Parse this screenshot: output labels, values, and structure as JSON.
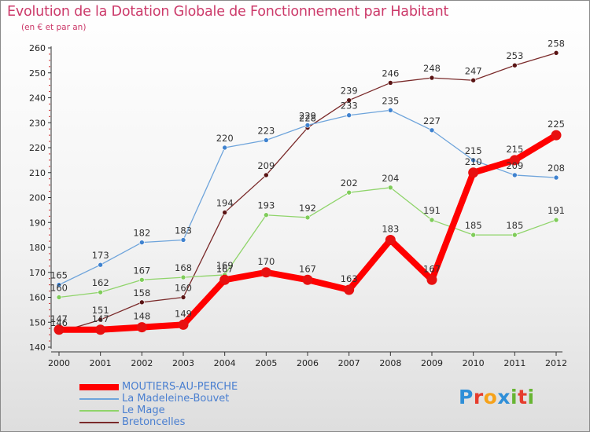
{
  "title": "Evolution de la Dotation Globale de Fonctionnement par Habitant",
  "subtitle": "(en € et par an)",
  "logo": {
    "text": "Proxiti",
    "letters": [
      {
        "ch": "P",
        "color": "#2f8fd8"
      },
      {
        "ch": "r",
        "color": "#e63c2d"
      },
      {
        "ch": "o",
        "color": "#f6a21a"
      },
      {
        "ch": "x",
        "color": "#2f8fd8"
      },
      {
        "ch": "i",
        "color": "#68b533"
      },
      {
        "ch": "t",
        "color": "#e63c2d"
      },
      {
        "ch": "i",
        "color": "#68b533"
      }
    ]
  },
  "chart_data": {
    "type": "line",
    "title": "Evolution de la Dotation Globale de Fonctionnement par Habitant",
    "subtitle": "(en € et par an)",
    "x": [
      2000,
      2001,
      2002,
      2003,
      2004,
      2005,
      2006,
      2007,
      2008,
      2009,
      2010,
      2011,
      2012
    ],
    "ylim": [
      140,
      260
    ],
    "yticks": [
      140,
      150,
      160,
      170,
      180,
      190,
      200,
      210,
      220,
      230,
      240,
      250,
      260
    ],
    "grid": false,
    "legend_position": "bottom-left",
    "series": [
      {
        "name": "MOUTIERS-AU-PERCHE",
        "color": "#ff0000",
        "marker": "#e81010",
        "width": 8,
        "radius": 6.5,
        "values": [
          147,
          147,
          148,
          149,
          167,
          170,
          167,
          163,
          183,
          167,
          210,
          215,
          225
        ],
        "labels": [
          "147",
          "147",
          "148",
          "149",
          "167",
          "170",
          "167",
          "163",
          "183",
          "167",
          "210",
          "215",
          "225"
        ]
      },
      {
        "name": "La Madeleine-Bouvet",
        "color": "#6ea4db",
        "marker": "#3f82cf",
        "width": 1.3,
        "radius": 3,
        "values": [
          165,
          173,
          182,
          183,
          220,
          223,
          229,
          233,
          235,
          227,
          215,
          209,
          208
        ],
        "labels": [
          "165",
          "173",
          "182",
          "183",
          "220",
          "223",
          "229",
          "233",
          "235",
          "227",
          "215",
          "209",
          "208"
        ]
      },
      {
        "name": "Le Mage",
        "color": "#8fd46a",
        "marker": "#7fcc5a",
        "width": 1.3,
        "radius": 3,
        "values": [
          160,
          162,
          167,
          168,
          169,
          193,
          192,
          202,
          204,
          191,
          185,
          185,
          191
        ],
        "labels": [
          "160",
          "162",
          "167",
          "168",
          "169",
          "193",
          "192",
          "202",
          "204",
          "191",
          "185",
          "185",
          "191"
        ]
      },
      {
        "name": "Bretoncelles",
        "color": "#7a2a2a",
        "marker": "#5a1414",
        "width": 1.3,
        "radius": 3,
        "values": [
          146,
          151,
          158,
          160,
          194,
          209,
          228,
          239,
          246,
          248,
          247,
          253,
          258
        ],
        "labels": [
          "146",
          "151",
          "158",
          "160",
          "194",
          "209",
          "228",
          "239",
          "246",
          "248",
          "247",
          "253",
          "258"
        ]
      }
    ]
  }
}
